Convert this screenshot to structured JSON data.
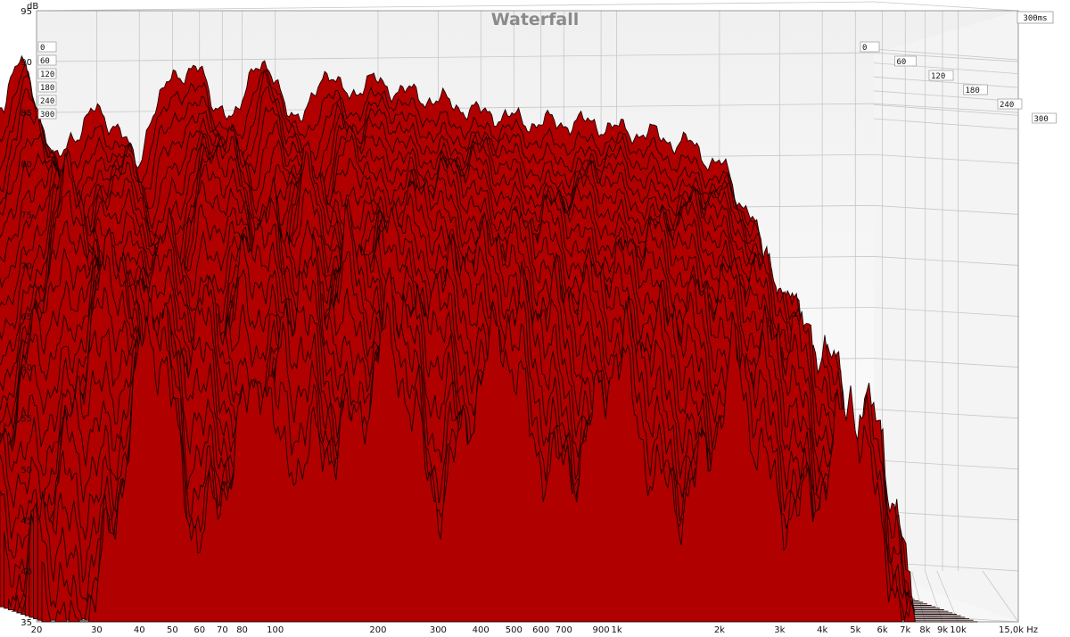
{
  "colors": {
    "fill": "#b00000",
    "stroke": "#1a0000",
    "grid": "#c7c7c7",
    "background_top": "#f2f2f2",
    "background_bottom": "#ffffff"
  },
  "chart_data": {
    "type": "area",
    "subtype": "waterfall-3d",
    "title": "Waterfall",
    "ylabel": "dB",
    "xlabel": "Hz",
    "x_scale": "log",
    "xlim": [
      20,
      15000
    ],
    "ylim": [
      35,
      95
    ],
    "y_ticks": [
      35,
      40,
      45,
      50,
      55,
      60,
      65,
      70,
      75,
      80,
      85,
      90,
      95
    ],
    "x_ticks": [
      {
        "value": 20,
        "label": "20"
      },
      {
        "value": 30,
        "label": "30"
      },
      {
        "value": 40,
        "label": "40"
      },
      {
        "value": 50,
        "label": "50"
      },
      {
        "value": 60,
        "label": "60"
      },
      {
        "value": 70,
        "label": "70"
      },
      {
        "value": 80,
        "label": "80"
      },
      {
        "value": 100,
        "label": "100"
      },
      {
        "value": 200,
        "label": "200"
      },
      {
        "value": 300,
        "label": "300"
      },
      {
        "value": 400,
        "label": "400"
      },
      {
        "value": 500,
        "label": "500"
      },
      {
        "value": 600,
        "label": "600"
      },
      {
        "value": 700,
        "label": "700"
      },
      {
        "value": 900,
        "label": "900"
      },
      {
        "value": 1000,
        "label": "1k"
      },
      {
        "value": 2000,
        "label": "2k"
      },
      {
        "value": 3000,
        "label": "3k"
      },
      {
        "value": 4000,
        "label": "4k"
      },
      {
        "value": 5000,
        "label": "5k"
      },
      {
        "value": 6000,
        "label": "6k"
      },
      {
        "value": 7000,
        "label": "7k"
      },
      {
        "value": 8000,
        "label": "8k"
      },
      {
        "value": 9000,
        "label": "9k"
      },
      {
        "value": 10000,
        "label": "10k"
      },
      {
        "value": 15000,
        "label": "15,0k Hz"
      }
    ],
    "time_axis_label": "300ms",
    "time_ticks": [
      "0",
      "60",
      "120",
      "180",
      "240",
      "300"
    ],
    "time_range_ms": [
      0,
      300
    ],
    "slice_count": 35,
    "grid": true,
    "envelope_front_slice": {
      "note": "approximate level of the t=0 slice (dB)",
      "freq_hz": [
        20,
        22,
        25,
        28,
        32,
        36,
        40,
        43,
        45,
        48,
        52,
        58,
        65,
        75,
        85,
        100,
        110,
        130,
        150,
        170,
        190,
        220,
        250,
        300,
        350,
        400,
        500,
        600,
        800,
        1000,
        1500,
        2000,
        3000,
        4000,
        5000,
        6000,
        7000,
        8000,
        9000,
        10000
      ],
      "level_db": [
        68,
        68.5,
        70,
        74,
        78,
        82,
        86,
        89,
        90,
        88,
        84,
        80,
        83,
        85,
        84,
        80,
        85,
        89,
        89,
        86,
        84,
        90,
        88,
        84,
        89,
        87,
        88,
        87,
        86,
        85,
        84,
        84,
        83,
        82,
        80,
        76,
        70,
        62,
        52,
        45
      ]
    },
    "slice_decay_db_total": 32,
    "slice_smoothing_db_total": 24
  }
}
